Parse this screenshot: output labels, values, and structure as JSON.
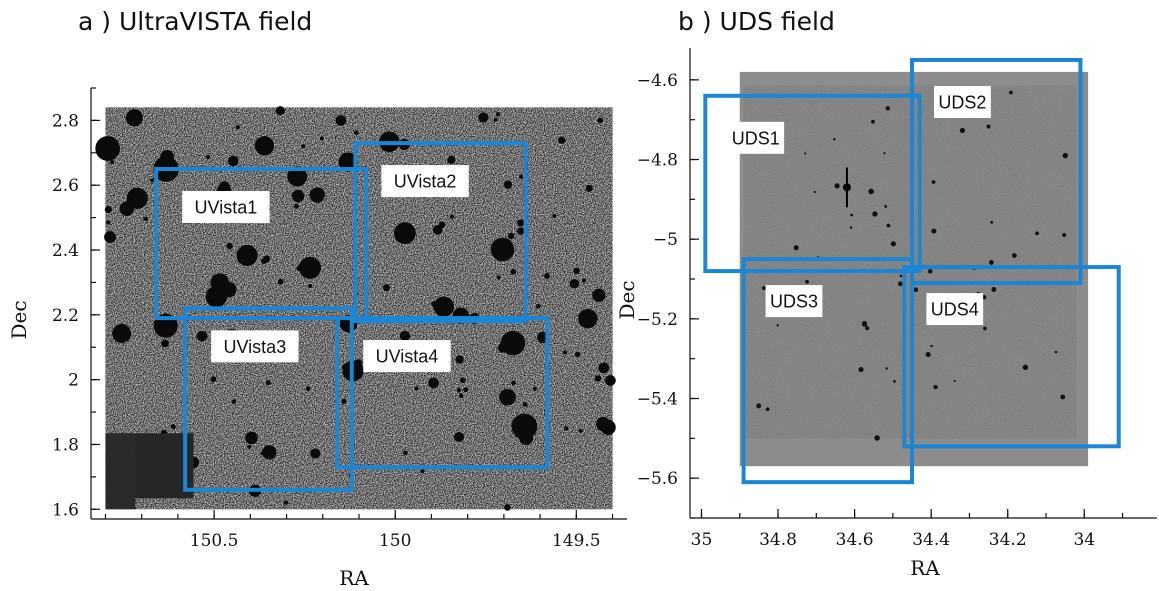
{
  "chart_data": [
    {
      "type": "scatter",
      "title": "a ) UltraVISTA field",
      "xlabel": "RA",
      "ylabel": "Dec",
      "xlim": [
        150.84,
        149.36
      ],
      "ylim": [
        1.57,
        2.9
      ],
      "x_inverted": true,
      "xticks": [
        150.5,
        150,
        149.5
      ],
      "xtick_labels": [
        "150.5",
        "150",
        "149.5"
      ],
      "yticks": [
        1.6,
        1.8,
        2,
        2.2,
        2.4,
        2.6,
        2.8
      ],
      "ytick_labels": [
        "1.6",
        "1.8",
        "2",
        "2.2",
        "2.4",
        "2.6",
        "2.8"
      ],
      "image_extent": {
        "ra": [
          150.8,
          149.4
        ],
        "dec": [
          1.6,
          2.84
        ]
      },
      "image_style": "dark noisy survey image with black masked regions",
      "fields": [
        {
          "label": "UVista1",
          "ra": [
            150.66,
            150.08
          ],
          "dec": [
            2.19,
            2.65
          ]
        },
        {
          "label": "UVista2",
          "ra": [
            150.11,
            149.64
          ],
          "dec": [
            2.18,
            2.73
          ]
        },
        {
          "label": "UVista3",
          "ra": [
            150.58,
            150.12
          ],
          "dec": [
            1.66,
            2.22
          ]
        },
        {
          "label": "UVista4",
          "ra": [
            150.16,
            149.58
          ],
          "dec": [
            1.73,
            2.19
          ]
        }
      ],
      "box_color": "#1b87d4"
    },
    {
      "type": "scatter",
      "title": "b ) UDS field",
      "xlabel": "RA",
      "ylabel": "Dec",
      "xlim": [
        35.03,
        33.81
      ],
      "ylim": [
        -5.7,
        -4.52
      ],
      "x_inverted": true,
      "xticks": [
        35,
        34.8,
        34.6,
        34.4,
        34.2,
        34
      ],
      "xtick_labels": [
        "35",
        "34.8",
        "34.6",
        "34.4",
        "34.2",
        "34"
      ],
      "yticks": [
        -5.6,
        -5.4,
        -5.2,
        -5,
        -4.8,
        -4.6
      ],
      "ytick_labels": [
        "−5.6",
        "−5.4",
        "−5.2",
        "−5",
        "−4.8",
        "−4.6"
      ],
      "image_extent": {
        "ra": [
          34.9,
          33.99
        ],
        "dec": [
          -5.57,
          -4.58
        ]
      },
      "image_border_color": "#8c8c8c",
      "image_style": "grey noise survey image with sparse dark sources",
      "fields": [
        {
          "label": "UDS1",
          "ra": [
            34.99,
            34.43
          ],
          "dec": [
            -5.08,
            -4.64
          ]
        },
        {
          "label": "UDS2",
          "ra": [
            34.45,
            34.01
          ],
          "dec": [
            -5.11,
            -4.55
          ]
        },
        {
          "label": "UDS3",
          "ra": [
            34.89,
            34.45
          ],
          "dec": [
            -5.61,
            -5.05
          ]
        },
        {
          "label": "UDS4",
          "ra": [
            34.47,
            33.91
          ],
          "dec": [
            -5.52,
            -5.07
          ]
        }
      ],
      "box_color": "#1b87d4"
    }
  ]
}
